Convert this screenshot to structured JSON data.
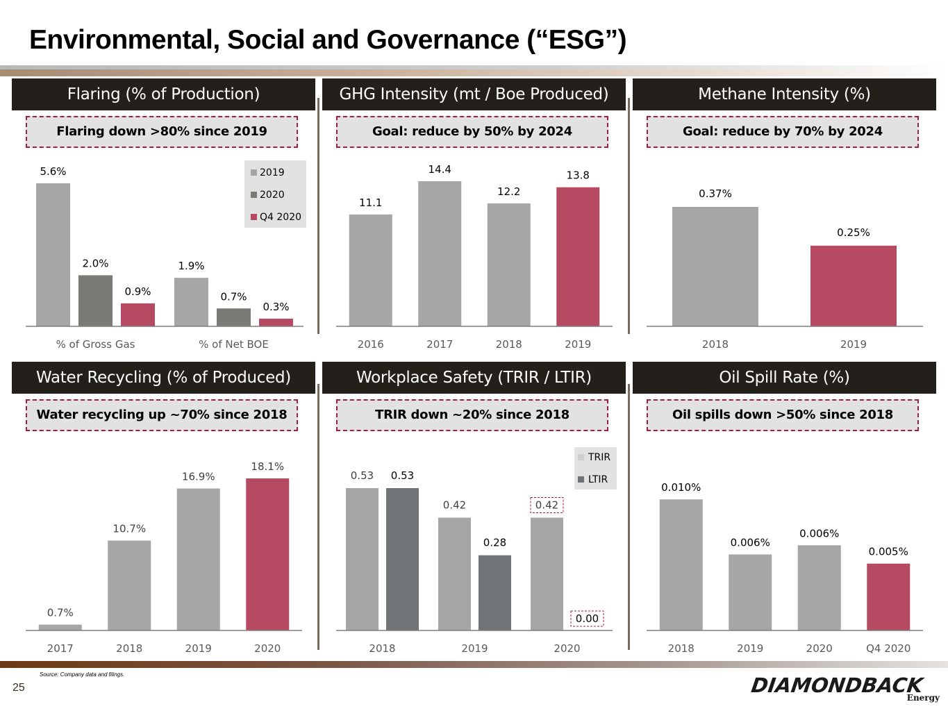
{
  "slide": {
    "title": "Environmental, Social and Governance (“ESG”)",
    "footnote": "Source: Company data and filings.",
    "page_number": "25",
    "logo": {
      "name": "DIAMONDBACK",
      "sub": "Energy"
    }
  },
  "colors": {
    "gray_bar": "#a6a6a6",
    "dark_gray_bar": "#7a7b76",
    "ltir_bar": "#717477",
    "accent_bar": "#b64a62",
    "header_bg": "#231f1a",
    "callout_border": "#a01f3e",
    "callout_bg": "#e2e2e2"
  },
  "panels": [
    {
      "header": "Flaring (% of Production)",
      "callout": "Flaring down >80% since 2019"
    },
    {
      "header": "GHG Intensity (mt / Boe Produced)",
      "callout": "Goal: reduce by 50% by 2024"
    },
    {
      "header": "Methane Intensity (%)",
      "callout": "Goal: reduce by 70% by 2024"
    },
    {
      "header": "Water Recycling (% of Produced)",
      "callout": "Water recycling up ~70% since 2018"
    },
    {
      "header": "Workplace Safety (TRIR / LTIR)",
      "callout": "TRIR down ~20% since 2018"
    },
    {
      "header": "Oil Spill Rate (%)",
      "callout": "Oil spills down >50% since 2018"
    }
  ],
  "chart_data": [
    {
      "type": "bar",
      "title": "Flaring (% of Production)",
      "categories": [
        "% of Gross Gas",
        "% of Net BOE"
      ],
      "series": [
        {
          "name": "2019",
          "values": [
            5.6,
            1.9
          ],
          "labels": [
            "5.6%",
            "1.9%"
          ],
          "color": "#a6a6a6"
        },
        {
          "name": "2020",
          "values": [
            2.0,
            0.7
          ],
          "labels": [
            "2.0%",
            "0.7%"
          ],
          "color": "#7a7b76"
        },
        {
          "name": "Q4 2020",
          "values": [
            0.9,
            0.3
          ],
          "labels": [
            "0.9%",
            "0.3%"
          ],
          "color": "#b64a62"
        }
      ],
      "legend": "top-right",
      "ylim": [
        0,
        5.6
      ]
    },
    {
      "type": "bar",
      "title": "GHG Intensity (mt / Boe Produced)",
      "categories": [
        "2016",
        "2017",
        "2018",
        "2019"
      ],
      "values": [
        11.1,
        14.4,
        12.2,
        13.8
      ],
      "labels": [
        "11.1",
        "14.4",
        "12.2",
        "13.8"
      ],
      "highlight_index": 3,
      "ylim": [
        0,
        14.4
      ]
    },
    {
      "type": "bar",
      "title": "Methane Intensity (%)",
      "categories": [
        "2018",
        "2019"
      ],
      "values": [
        0.37,
        0.25
      ],
      "labels": [
        "0.37%",
        "0.25%"
      ],
      "highlight_index": 1,
      "ylim": [
        0,
        0.5
      ]
    },
    {
      "type": "bar",
      "title": "Water Recycling (% of Produced)",
      "categories": [
        "2017",
        "2018",
        "2019",
        "2020"
      ],
      "values": [
        0.7,
        10.7,
        16.9,
        18.1
      ],
      "labels": [
        "0.7%",
        "10.7%",
        "16.9%",
        "18.1%"
      ],
      "highlight_index": 3,
      "ylim": [
        0,
        18.1
      ]
    },
    {
      "type": "bar",
      "title": "Workplace Safety (TRIR / LTIR)",
      "categories": [
        "2018",
        "2019",
        "2020"
      ],
      "series": [
        {
          "name": "TRIR",
          "values": [
            0.53,
            0.42,
            0.42
          ],
          "labels": [
            "0.53",
            "0.42",
            "0.42"
          ],
          "color": "#a6a6a6"
        },
        {
          "name": "LTIR",
          "values": [
            0.53,
            0.28,
            0.0
          ],
          "labels": [
            "0.53",
            "0.28",
            "0.00"
          ],
          "color": "#717477"
        }
      ],
      "boxed_labels": [
        "TRIR-2020",
        "LTIR-2020"
      ],
      "legend": "top-right",
      "ylim": [
        0,
        0.53
      ]
    },
    {
      "type": "bar",
      "title": "Oil Spill Rate (%)",
      "categories": [
        "2018",
        "2019",
        "2020",
        "Q4 2020"
      ],
      "values": [
        0.01,
        0.0058,
        0.0065,
        0.0051
      ],
      "labels": [
        "0.010%",
        "0.006%",
        "0.006%",
        "0.005%"
      ],
      "highlight_index": 3,
      "ylim": [
        0,
        0.0125
      ]
    }
  ]
}
